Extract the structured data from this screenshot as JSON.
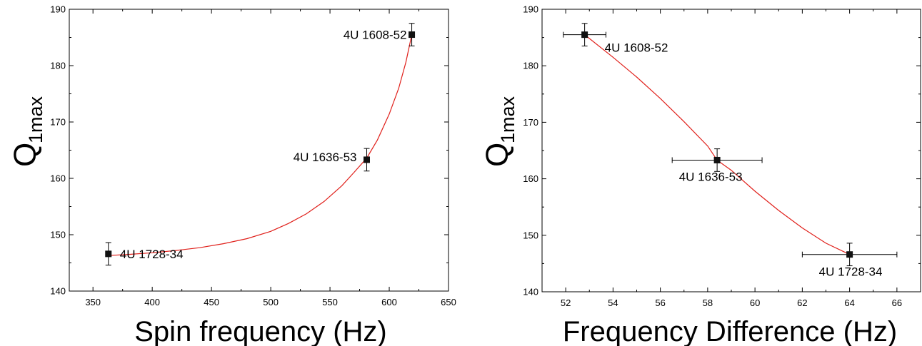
{
  "chart_data": [
    {
      "type": "scatter",
      "xlabel": "Spin frequency (Hz)",
      "ylabel_main": "Q",
      "ylabel_sub": "1max",
      "xlim": [
        330,
        650
      ],
      "ylim": [
        140,
        190
      ],
      "xticks": [
        350,
        400,
        450,
        500,
        550,
        600,
        650
      ],
      "yticks": [
        140,
        150,
        160,
        170,
        180,
        190
      ],
      "grid": false,
      "fit_color": "#e0201b",
      "fit_curve": {
        "x": [
          363,
          380,
          400,
          420,
          440,
          460,
          480,
          500,
          515,
          530,
          545,
          560,
          570,
          581,
          590,
          600,
          608,
          614,
          619
        ],
        "y": [
          146.3,
          146.5,
          146.8,
          147.2,
          147.7,
          148.4,
          149.3,
          150.6,
          152.0,
          153.7,
          155.9,
          158.7,
          161.0,
          163.6,
          166.8,
          171.4,
          176.0,
          180.6,
          185.5
        ]
      },
      "points": [
        {
          "name": "4U 1728-34",
          "x": 363,
          "y": 146.6,
          "yerr": 2.0
        },
        {
          "name": "4U 1636-53",
          "x": 581,
          "y": 163.3,
          "yerr": 2.0
        },
        {
          "name": "4U 1608-52",
          "x": 619,
          "y": 185.5,
          "yerr": 2.0
        }
      ]
    },
    {
      "type": "scatter",
      "xlabel": "Frequency Difference (Hz)",
      "ylabel_main": "Q",
      "ylabel_sub": "1max",
      "xlim": [
        51,
        67
      ],
      "ylim": [
        140,
        190
      ],
      "xticks": [
        52,
        54,
        56,
        58,
        60,
        62,
        64,
        66
      ],
      "yticks": [
        140,
        150,
        160,
        170,
        180,
        190
      ],
      "grid": false,
      "fit_color": "#e0201b",
      "fit_curve": {
        "x": [
          52.8,
          54,
          55,
          56,
          57,
          58,
          58.4,
          59,
          60,
          61,
          62,
          63,
          64
        ],
        "y": [
          185.5,
          181.5,
          178.0,
          174.2,
          170.1,
          165.8,
          163.3,
          161.5,
          157.8,
          154.4,
          151.3,
          148.6,
          146.6
        ]
      },
      "points": [
        {
          "name": "4U 1608-52",
          "x": 52.8,
          "y": 185.5,
          "xerr": 0.9,
          "yerr": 2.0
        },
        {
          "name": "4U 1636-53",
          "x": 58.4,
          "y": 163.3,
          "xerr": 1.9,
          "yerr": 2.0
        },
        {
          "name": "4U 1728-34",
          "x": 64.0,
          "y": 146.6,
          "xerr": 2.0,
          "yerr": 2.0
        }
      ]
    }
  ]
}
